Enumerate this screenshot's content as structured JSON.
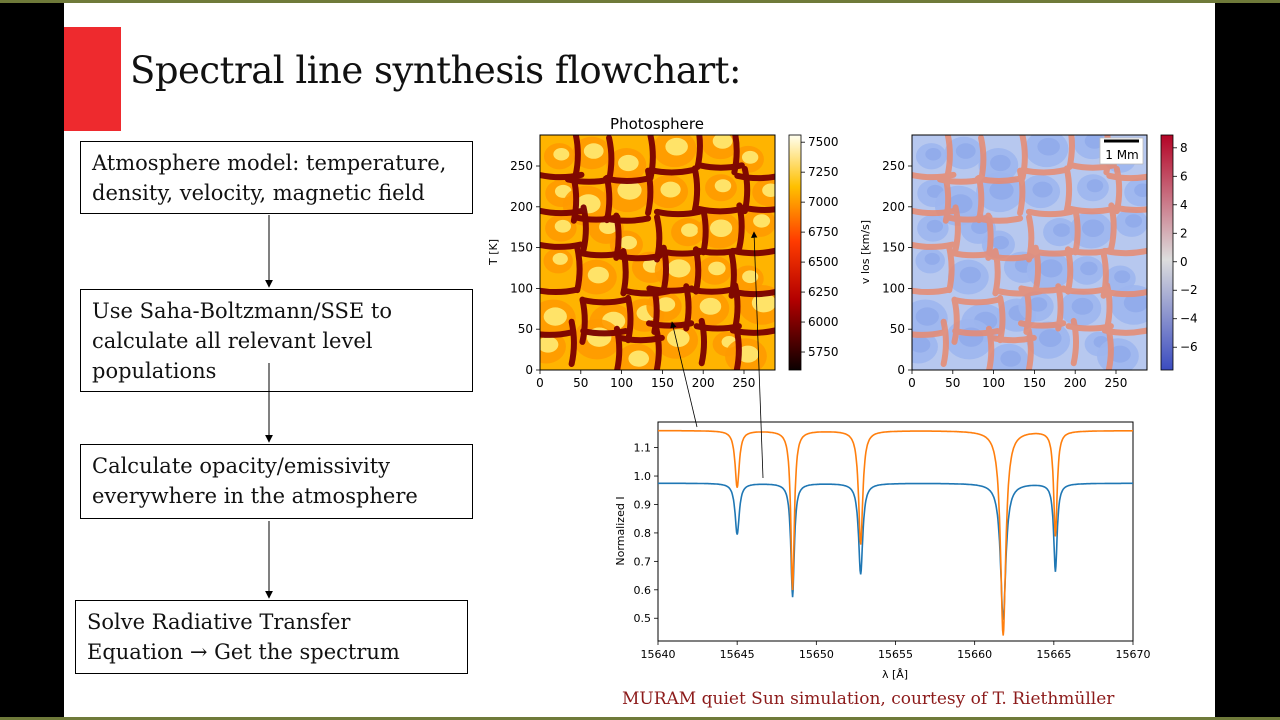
{
  "slide": {
    "title": "Spectral line synthesis flowchart:",
    "credit": "MURAM quiet Sun simulation, courtesy of T. Riethmüller",
    "accent_color": "#ee2a2e"
  },
  "flowchart": {
    "steps": [
      {
        "lines": [
          "Atmosphere model: temperature,",
          "density, velocity, magnetic field"
        ]
      },
      {
        "lines": [
          "Use Saha-Boltzmann/SSE to",
          "calculate all relevant level",
          "populations"
        ]
      },
      {
        "lines": [
          "Calculate opacity/emissivity",
          "everywhere in the atmosphere"
        ]
      },
      {
        "lines": [
          "Solve Radiative Transfer",
          "Equation → Get the spectrum"
        ]
      }
    ]
  },
  "chart_data": [
    {
      "type": "heatmap",
      "title": "Photosphere",
      "ylabel": "T [K]",
      "xlabel": "",
      "xlim": [
        0,
        288
      ],
      "ylim": [
        0,
        288
      ],
      "x_ticks": [
        "0",
        "50",
        "100",
        "150",
        "200",
        "250"
      ],
      "y_ticks": [
        "0",
        "50",
        "100",
        "150",
        "200",
        "250"
      ],
      "colorbar": {
        "ticks": [
          "5750",
          "6000",
          "6250",
          "6500",
          "6750",
          "7000",
          "7250",
          "7500"
        ],
        "range": [
          5600,
          7560
        ],
        "colormap": "hot"
      }
    },
    {
      "type": "heatmap",
      "title": "",
      "ylabel": "v los [km/s]",
      "xlabel": "",
      "xlim": [
        0,
        288
      ],
      "ylim": [
        0,
        288
      ],
      "x_ticks": [
        "0",
        "50",
        "100",
        "150",
        "200",
        "250"
      ],
      "y_ticks": [
        "0",
        "50",
        "100",
        "150",
        "200",
        "250"
      ],
      "scale_bar": "1 Mm",
      "colorbar": {
        "ticks": [
          "−6",
          "−4",
          "−2",
          "0",
          "2",
          "4",
          "6",
          "8"
        ],
        "range": [
          -7.6,
          8.9
        ],
        "colormap": "coolwarm"
      }
    },
    {
      "type": "line",
      "xlabel": "λ [Å]",
      "ylabel": "Normalized I",
      "xlim": [
        15640,
        15670
      ],
      "ylim": [
        0.42,
        1.19
      ],
      "x_ticks": [
        "15640",
        "15645",
        "15650",
        "15655",
        "15660",
        "15665",
        "15670"
      ],
      "y_ticks": [
        "0.5",
        "0.6",
        "0.7",
        "0.8",
        "0.9",
        "1.0",
        "1.1"
      ],
      "lines_center": [
        15645.0,
        15648.5,
        15652.8,
        15661.8,
        15665.1
      ],
      "series": [
        {
          "color": "#1f77b4",
          "continuum": 0.975,
          "depths": [
            0.18,
            0.4,
            0.32,
            0.48,
            0.31
          ]
        },
        {
          "color": "#ff7f0e",
          "continuum": 1.16,
          "depths": [
            0.2,
            0.56,
            0.4,
            0.72,
            0.37
          ]
        }
      ]
    }
  ]
}
